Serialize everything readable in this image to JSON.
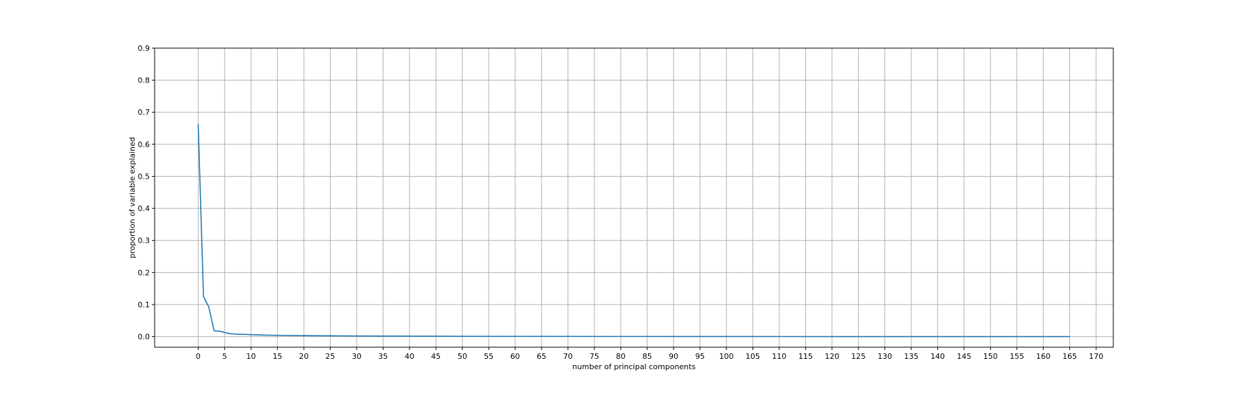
{
  "chart_data": {
    "type": "line",
    "title": "",
    "xlabel": "number of principal components",
    "ylabel": "proportion of variable explained",
    "xlim": [
      -8.25,
      173.25
    ],
    "ylim": [
      -0.033,
      0.9
    ],
    "xticks": [
      0,
      5,
      10,
      15,
      20,
      25,
      30,
      35,
      40,
      45,
      50,
      55,
      60,
      65,
      70,
      75,
      80,
      85,
      90,
      95,
      100,
      105,
      110,
      115,
      120,
      125,
      130,
      135,
      140,
      145,
      150,
      155,
      160,
      165,
      170
    ],
    "yticks": [
      0.0,
      0.1,
      0.2,
      0.3,
      0.4,
      0.5,
      0.6,
      0.7,
      0.8,
      0.9
    ],
    "grid": true,
    "line_color": "#1f77b4",
    "series": [
      {
        "x": [
          0,
          1,
          2,
          3,
          4,
          5,
          6,
          7,
          8,
          9,
          10,
          12,
          15,
          20,
          25,
          30,
          40,
          50,
          60,
          80,
          100,
          120,
          140,
          165
        ],
        "y": [
          0.663,
          0.125,
          0.093,
          0.018,
          0.017,
          0.013,
          0.009,
          0.008,
          0.007,
          0.007,
          0.006,
          0.005,
          0.004,
          0.003,
          0.0025,
          0.002,
          0.0015,
          0.001,
          0.0008,
          0.0005,
          0.0003,
          0.0002,
          0.0001,
          0.0001
        ]
      }
    ]
  }
}
